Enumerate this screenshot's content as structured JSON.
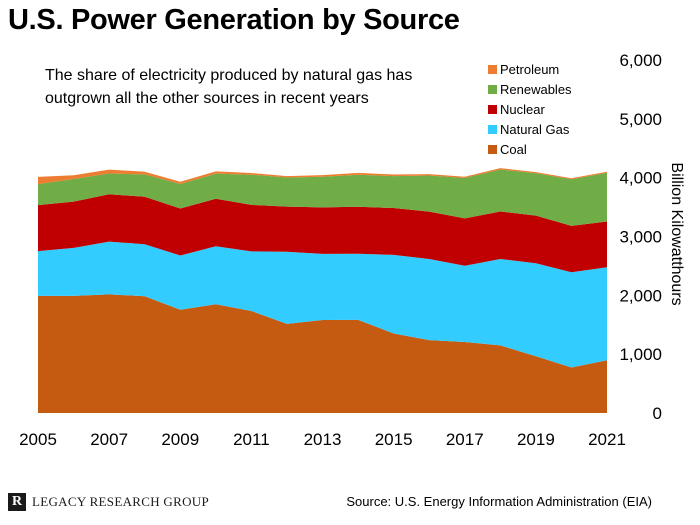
{
  "header": {
    "title": "U.S. Power Generation by Source"
  },
  "footer": {
    "logo_mark": "R",
    "logo_text": "LEGACY RESEARCH GROUP",
    "source": "Source: U.S. Energy Information Administration (EIA)"
  },
  "chart_data": {
    "type": "area",
    "stacked": true,
    "annotation": [
      "The share of electricity produced by natural gas has",
      "outgrown all the other sources in recent years"
    ],
    "ylabel": "Billion Kilowatthours",
    "xlabel": "",
    "ylim": [
      0,
      6000
    ],
    "yticks": [
      "0",
      "1,000",
      "2,000",
      "3,000",
      "4,000",
      "5,000",
      "6,000"
    ],
    "xticks": [
      "2005",
      "2007",
      "2009",
      "2011",
      "2013",
      "2015",
      "2017",
      "2019",
      "2021"
    ],
    "grid": false,
    "legend_position": "top-right",
    "x": [
      2005,
      2006,
      2007,
      2008,
      2009,
      2010,
      2011,
      2012,
      2013,
      2014,
      2015,
      2016,
      2017,
      2018,
      2019,
      2020,
      2021
    ],
    "series": [
      {
        "name": "Coal",
        "color": "#c55a11",
        "values": [
          1990,
          1990,
          2016,
          1986,
          1756,
          1847,
          1733,
          1514,
          1581,
          1582,
          1352,
          1239,
          1206,
          1149,
          965,
          774,
          898
        ]
      },
      {
        "name": "Natural Gas",
        "color": "#33ccff",
        "values": [
          761,
          816,
          897,
          883,
          921,
          988,
          1014,
          1226,
          1124,
          1126,
          1335,
          1379,
          1297,
          1469,
          1582,
          1617,
          1579
        ]
      },
      {
        "name": "Nuclear",
        "color": "#c00000",
        "values": [
          782,
          787,
          806,
          806,
          799,
          807,
          790,
          769,
          789,
          797,
          797,
          806,
          805,
          807,
          809,
          790,
          778
        ]
      },
      {
        "name": "Renewables",
        "color": "#70ad47",
        "values": [
          358,
          385,
          352,
          380,
          417,
          427,
          513,
          494,
          522,
          546,
          542,
          612,
          687,
          713,
          720,
          792,
          826
        ]
      },
      {
        "name": "Petroleum",
        "color": "#ed7d31",
        "values": [
          122,
          64,
          66,
          46,
          39,
          37,
          30,
          23,
          27,
          30,
          28,
          24,
          21,
          25,
          18,
          17,
          19
        ]
      }
    ]
  }
}
